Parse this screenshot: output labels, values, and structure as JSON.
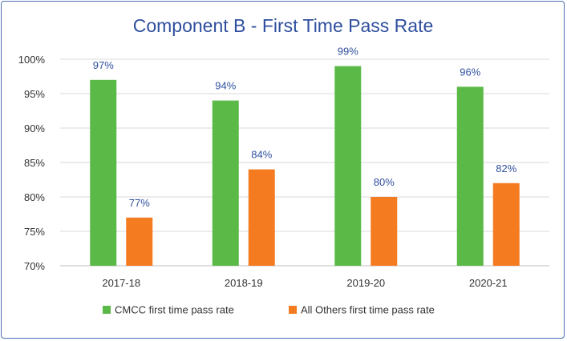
{
  "chart_data": {
    "type": "bar",
    "title": "Component B - First Time Pass Rate",
    "categories": [
      "2017-18",
      "2018-19",
      "2019-20",
      "2020-21"
    ],
    "series": [
      {
        "name": "CMCC first time pass rate",
        "values": [
          97,
          94,
          99,
          96
        ],
        "data_labels": [
          "97%",
          "94%",
          "99%",
          "96%"
        ],
        "color": "#5bb947"
      },
      {
        "name": "All Others first time pass rate",
        "values": [
          77,
          84,
          80,
          82
        ],
        "data_labels": [
          "77%",
          "84%",
          "80%",
          "82%"
        ],
        "color": "#f47b20"
      }
    ],
    "ylim": [
      70,
      100
    ],
    "yticks": [
      {
        "value": 100,
        "label": "100%"
      },
      {
        "value": 95,
        "label": "95%"
      },
      {
        "value": 90,
        "label": "90%"
      },
      {
        "value": 85,
        "label": "85%"
      },
      {
        "value": 80,
        "label": "80%"
      },
      {
        "value": 75,
        "label": "75%"
      },
      {
        "value": 70,
        "label": "70%"
      }
    ],
    "grid": true,
    "legend": "bottom",
    "title_color": "#2f4f9e",
    "label_color": "#2f4f9e"
  }
}
